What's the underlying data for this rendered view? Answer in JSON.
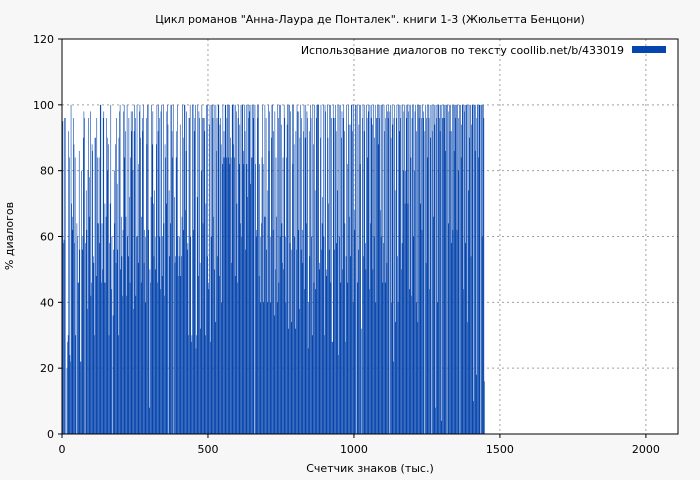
{
  "chart_data": {
    "type": "bar",
    "title": "Цикл романов \"Анна-Лаура де Понталек\". книги 1-3 (Жюльетта Бенцони)",
    "xlabel": "Счетчик знаков (тыс.)",
    "ylabel": "% диалогов",
    "xlim": [
      0,
      2110
    ],
    "ylim": [
      0,
      120
    ],
    "x_ticks": [
      0,
      500,
      1000,
      1500,
      2000
    ],
    "y_ticks": [
      0,
      20,
      40,
      60,
      80,
      100,
      120
    ],
    "x_tick_labels": [
      "0",
      "500",
      "1000",
      "1500",
      "2000"
    ],
    "y_tick_labels": [
      "0",
      "20",
      "40",
      "60",
      "80",
      "100",
      "120"
    ],
    "grid": true,
    "legend_position": "top-right",
    "series": [
      {
        "name": "Использование диалогов по тексту  coollib.net/b/433019",
        "color": "#0645ad",
        "bin_width": 2,
        "x_start": 0,
        "values": [
          88,
          95,
          58,
          59,
          96,
          96,
          0,
          0,
          20,
          28,
          30,
          92,
          84,
          24,
          22,
          100,
          70,
          66,
          62,
          96,
          88,
          58,
          84,
          30,
          0,
          64,
          60,
          46,
          46,
          86,
          56,
          22,
          22,
          80,
          60,
          56,
          90,
          98,
          96,
          0,
          58,
          74,
          62,
          38,
          80,
          96,
          66,
          78,
          98,
          42,
          46,
          88,
          86,
          54,
          52,
          30,
          90,
          90,
          48,
          96,
          84,
          64,
          64,
          84,
          58,
          100,
          100,
          46,
          64,
          50,
          96,
          98,
          46,
          70,
          46,
          66,
          96,
          90,
          80,
          88,
          30,
          58,
          70,
          100,
          44,
          60,
          0,
          36,
          56,
          80,
          64,
          88,
          52,
          96,
          76,
          56,
          30,
          90,
          98,
          100,
          50,
          66,
          54,
          42,
          62,
          98,
          100,
          84,
          92,
          66,
          42,
          100,
          60,
          54,
          96,
          72,
          46,
          84,
          98,
          92,
          98,
          80,
          38,
          92,
          100,
          96,
          42,
          60,
          100,
          60,
          52,
          82,
          98,
          100,
          90,
          46,
          66,
          96,
          92,
          100,
          52,
          62,
          60,
          40,
          96,
          88,
          100,
          100,
          62,
          8,
          50,
          46,
          72,
          100,
          88,
          98,
          70,
          54,
          74,
          60,
          50,
          88,
          100,
          46,
          92,
          100,
          96,
          60,
          44,
          98,
          100,
          48,
          60,
          100,
          64,
          42,
          88,
          84,
          70,
          98,
          100,
          94,
          0,
          74,
          54,
          64,
          100,
          100,
          92,
          84,
          100,
          0,
          72,
          52,
          54,
          84,
          92,
          100,
          60,
          48,
          54,
          60,
          94,
          48,
          54,
          66,
          100,
          90,
          62,
          100,
          100,
          68,
          86,
          98,
          56,
          58,
          30,
          96,
          96,
          100,
          60,
          28,
          30,
          100,
          100,
          62,
          92,
          96,
          100,
          26,
          30,
          72,
          100,
          48,
          98,
          96,
          52,
          32,
          80,
          100,
          96,
          64,
          96,
          96,
          92,
          30,
          70,
          100,
          54,
          100,
          46,
          44,
          94,
          100,
          28,
          60,
          100,
          100,
          96,
          66,
          100,
          50,
          34,
          100,
          86,
          96,
          54,
          100,
          100,
          48,
          94,
          96,
          88,
          40,
          82,
          100,
          84,
          92,
          84,
          100,
          100,
          84,
          96,
          100,
          84,
          100,
          100,
          82,
          90,
          84,
          52,
          100,
          100,
          88,
          100,
          84,
          48,
          100,
          98,
          70,
          46,
          96,
          100,
          82,
          94,
          64,
          100,
          60,
          100,
          100,
          86,
          82,
          100,
          92,
          56,
          100,
          82,
          72,
          100,
          96,
          100,
          98,
          76,
          100,
          84,
          84,
          100,
          96,
          100,
          0,
          100,
          82,
          60,
          62,
          100,
          96,
          100,
          48,
          82,
          40,
          60,
          64,
          84,
          100,
          82,
          40,
          66,
          100,
          66,
          96,
          56,
          40,
          74,
          100,
          86,
          98,
          60,
          40,
          90,
          100,
          100,
          62,
          92,
          36,
          98,
          50,
          84,
          66,
          40,
          100,
          96,
          46,
          100,
          60,
          100,
          94,
          64,
          52,
          84,
          50,
          100,
          96,
          60,
          40,
          84,
          94,
          100,
          32,
          100,
          100,
          58,
          98,
          56,
          34,
          100,
          82,
          100,
          88,
          60,
          32,
          92,
          56,
          100,
          98,
          62,
          98,
          38,
          90,
          100,
          56,
          96,
          62,
          52,
          92,
          100,
          44,
          90,
          100,
          64,
          98,
          96,
          26,
          40,
          92,
          54,
          100,
          96,
          60,
          30,
          100,
          88,
          46,
          100,
          74,
          44,
          96,
          100,
          100,
          100,
          100,
          50,
          52,
          90,
          100,
          56,
          64,
          72,
          100,
          60,
          30,
          100,
          98,
          50,
          48,
          100,
          90,
          70,
          56,
          100,
          100,
          46,
          96,
          28,
          28,
          100,
          96,
          56,
          96,
          100,
          92,
          58,
          74,
          100,
          24,
          100,
          60,
          100,
          46,
          90,
          98,
          50,
          96,
          100,
          92,
          64,
          28,
          54,
          100,
          82,
          46,
          100,
          94,
          66,
          94,
          54,
          100,
          100,
          92,
          40,
          100,
          68,
          62,
          100,
          100,
          0,
          100,
          46,
          56,
          94,
          100,
          82,
          100,
          32,
          0,
          96,
          100,
          54,
          92,
          100,
          58,
          50,
          100,
          96,
          84,
          98,
          100,
          44,
          100,
          64,
          96,
          100,
          94,
          50,
          100,
          60,
          90,
          100,
          40,
          96,
          96,
          100,
          88,
          100,
          96,
          100,
          68,
          60,
          100,
          100,
          46,
          58,
          100,
          92,
          46,
          96,
          100,
          52,
          98,
          96,
          100,
          0,
          98,
          100,
          90,
          40,
          100,
          94,
          22,
          96,
          100,
          74,
          34,
          96,
          100,
          54,
          40,
          100,
          100,
          92,
          96,
          100,
          50,
          58,
          100,
          80,
          98,
          100,
          70,
          80,
          100,
          96,
          100,
          70,
          98,
          100,
          44,
          100,
          84,
          42,
          96,
          100,
          100,
          60,
          80,
          98,
          100,
          40,
          92,
          100,
          34,
          100,
          96,
          100,
          70,
          100,
          96,
          62,
          100,
          96,
          98,
          0,
          92,
          100,
          52,
          96,
          100,
          84,
          100,
          96,
          44,
          100,
          90,
          0,
          100,
          92,
          100,
          66,
          100,
          94,
          8,
          100,
          96,
          100,
          40,
          100,
          100,
          96,
          92,
          100,
          4,
          100,
          96,
          96,
          100,
          96,
          100,
          86,
          100,
          100,
          0,
          100,
          64,
          98,
          100,
          92,
          100,
          58,
          92,
          100,
          62,
          100,
          86,
          100,
          100,
          96,
          100,
          62,
          100,
          80,
          96,
          100,
          0,
          100,
          84,
          94,
          100,
          100,
          44,
          100,
          98,
          100,
          58,
          100,
          100,
          34,
          100,
          74,
          90,
          100,
          100,
          54,
          94,
          100,
          100,
          10,
          100,
          100,
          86,
          100,
          18,
          96,
          100,
          100,
          84,
          100,
          100,
          0,
          100,
          100,
          60,
          100,
          100,
          96,
          16
        ]
      }
    ]
  }
}
